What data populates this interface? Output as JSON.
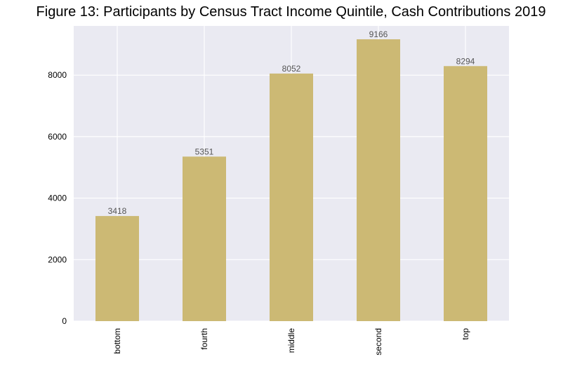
{
  "chart_data": {
    "type": "bar",
    "title": "Figure 13: Participants by Census Tract Income Quintile, Cash Contributions 2019",
    "xlabel": "",
    "ylabel": "",
    "categories": [
      "bottom",
      "fourth",
      "middle",
      "second",
      "top"
    ],
    "values": [
      3418,
      5351,
      8052,
      9166,
      8294
    ],
    "data_labels": [
      "3418",
      "5351",
      "8052",
      "9166",
      "8294"
    ],
    "ylim": [
      0,
      9600
    ],
    "yticks": [
      0,
      2000,
      4000,
      6000,
      8000
    ],
    "ytick_labels": [
      "0",
      "2000",
      "4000",
      "6000",
      "8000"
    ],
    "grid": true,
    "legend": "none",
    "colors": {
      "bar": "#ccb974",
      "plot_background": "#eaeaf2",
      "grid": "#ffffff",
      "data_label": "#555555"
    }
  }
}
